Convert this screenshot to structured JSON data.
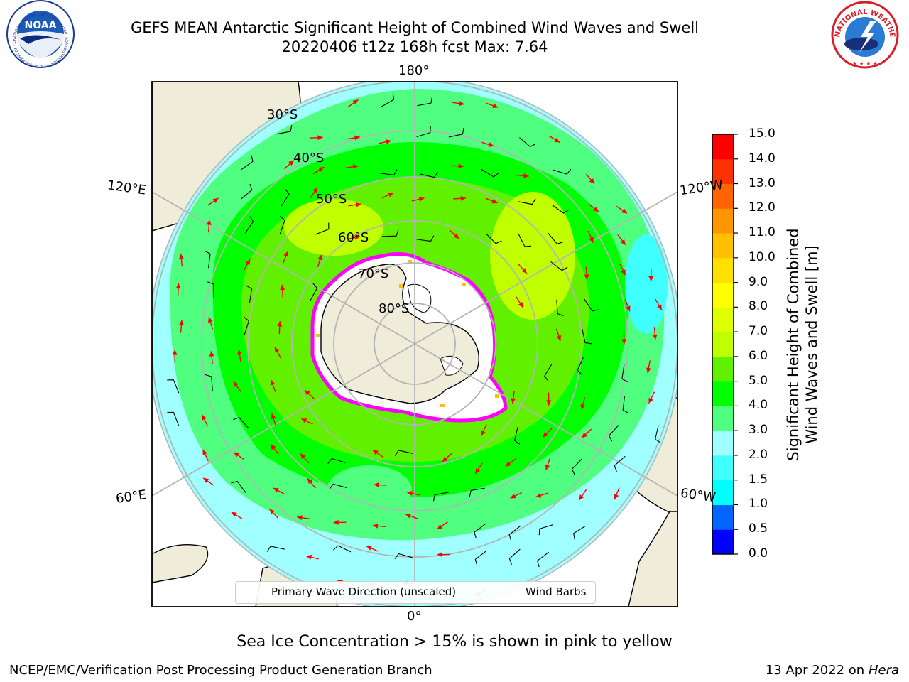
{
  "header": {
    "title_line1": "GEFS MEAN Antarctic Significant Height of Combined Wind Waves and Swell",
    "title_line2": "20220406 t12z 168h fcst   Max: 7.64"
  },
  "logos": {
    "noaa": {
      "text": "NOAA",
      "ring_text": "NATIONAL OCEANIC AND ATMOSPHERIC ADMINISTRATION · U.S. DEPARTMENT OF COMMERCE"
    },
    "nws": {
      "ring_text": "NATIONAL WEATHER SERVICE"
    }
  },
  "map": {
    "longitude_labels": [
      "180°",
      "120°E",
      "120°W",
      "60°E",
      "60°W",
      "0°"
    ],
    "latitude_labels": [
      "30°S",
      "40°S",
      "50°S",
      "60°S",
      "70°S",
      "80°S"
    ],
    "colors": {
      "land": "#efecda",
      "ice": "#ffffff",
      "grid": "#b4b4b4",
      "wave_arrow": "#ff0000",
      "wind_barb": "#000000",
      "ice_edge": "#ff00ff"
    }
  },
  "legend": {
    "wave_direction_label": "Primary Wave Direction (unscaled)",
    "wind_barbs_label": "Wind Barbs"
  },
  "colorbar": {
    "title_line1": "Significant Height of Combined",
    "title_line2": "Wind Waves and Swell [m]",
    "ticks": [
      "0.0",
      "0.5",
      "1.0",
      "1.5",
      "2.0",
      "3.0",
      "4.0",
      "5.0",
      "6.0",
      "7.0",
      "8.0",
      "9.0",
      "10.0",
      "11.0",
      "12.0",
      "13.0",
      "14.0",
      "15.0"
    ],
    "colors": [
      "#0000ff",
      "#0064ff",
      "#00ffff",
      "#40ffff",
      "#a0ffff",
      "#50ff80",
      "#00ff00",
      "#60f000",
      "#c0ff00",
      "#e0ff00",
      "#ffff00",
      "#ffe000",
      "#ffc000",
      "#ff9600",
      "#ff6400",
      "#ff3200",
      "#ff0000"
    ]
  },
  "footer": {
    "note": "Sea Ice Concentration > 15% is shown in pink to yellow",
    "credit": "NCEP/EMC/Verification Post Processing Product Generation Branch",
    "date": "13 Apr 2022 on ",
    "machine": "Hera"
  }
}
